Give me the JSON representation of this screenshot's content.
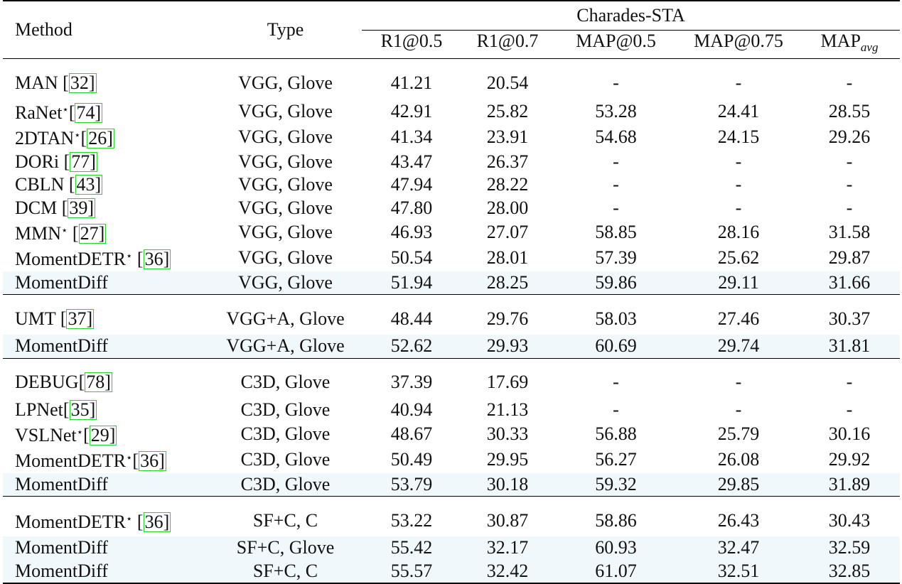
{
  "table": {
    "col_method": "Method",
    "col_type": "Type",
    "dataset": "Charades-STA",
    "metrics": [
      "R1@0.5",
      "R1@0.7",
      "MAP@0.5",
      "MAP@0.75"
    ],
    "metric_last_base": "MAP",
    "metric_last_sub": "avg",
    "groups": [
      {
        "rows": [
          {
            "method": "MAN",
            "star": false,
            "cite": "32",
            "cite_gap": " [",
            "type": "VGG, Glove",
            "values": [
              "41.21",
              "20.54",
              "-",
              "-",
              "-"
            ],
            "bold": false,
            "highlight": false
          },
          {
            "method": "RaNet",
            "star": true,
            "cite": "74",
            "cite_gap": "[",
            "type": "VGG, Glove",
            "values": [
              "42.91",
              "25.82",
              "53.28",
              "24.41",
              "28.55"
            ],
            "bold": false,
            "highlight": false
          },
          {
            "method": "2DTAN",
            "star": true,
            "cite": "26",
            "cite_gap": "[",
            "type": "VGG, Glove",
            "values": [
              "41.34",
              "23.91",
              "54.68",
              "24.15",
              "29.26"
            ],
            "bold": false,
            "highlight": false
          },
          {
            "method": "DORi",
            "star": false,
            "cite": "77",
            "cite_gap": " [",
            "type": "VGG, Glove",
            "values": [
              "43.47",
              "26.37",
              "-",
              "-",
              "-"
            ],
            "bold": false,
            "highlight": false
          },
          {
            "method": "CBLN",
            "star": false,
            "cite": "43",
            "cite_gap": " [",
            "type": "VGG, Glove",
            "values": [
              "47.94",
              "28.22",
              "-",
              "-",
              "-"
            ],
            "bold": false,
            "highlight": false
          },
          {
            "method": "DCM",
            "star": false,
            "cite": "39",
            "cite_gap": " [",
            "type": "VGG, Glove",
            "values": [
              "47.80",
              "28.00",
              "-",
              "-",
              "-"
            ],
            "bold": false,
            "highlight": false
          },
          {
            "method": "MMN",
            "star": true,
            "cite": "27",
            "cite_gap": " [",
            "type": "VGG, Glove",
            "values": [
              "46.93",
              "27.07",
              "58.85",
              "28.16",
              "31.58"
            ],
            "bold": false,
            "highlight": false
          },
          {
            "method": "MomentDETR",
            "star": true,
            "cite": "36",
            "cite_gap": " [",
            "type": "VGG, Glove",
            "values": [
              "50.54",
              "28.01",
              "57.39",
              "25.62",
              "29.87"
            ],
            "bold": false,
            "highlight": false
          },
          {
            "method": "MomentDiff",
            "star": false,
            "cite": "",
            "cite_gap": "",
            "type": "VGG, Glove",
            "values": [
              "51.94",
              "28.25",
              "59.86",
              "29.11",
              "31.66"
            ],
            "bold": true,
            "highlight": true
          }
        ]
      },
      {
        "rows": [
          {
            "method": "UMT",
            "star": false,
            "cite": "37",
            "cite_gap": " [",
            "type": "VGG+A, Glove",
            "values": [
              "48.44",
              "29.76",
              "58.03",
              "27.46",
              "30.37"
            ],
            "bold": false,
            "highlight": false
          },
          {
            "method": "MomentDiff",
            "star": false,
            "cite": "",
            "cite_gap": "",
            "type": "VGG+A, Glove",
            "values": [
              "52.62",
              "29.93",
              "60.69",
              "29.74",
              "31.81"
            ],
            "bold": true,
            "highlight": true
          }
        ]
      },
      {
        "rows": [
          {
            "method": "DEBUG",
            "star": false,
            "cite": "78",
            "cite_gap": "[",
            "type": "C3D, Glove",
            "values": [
              "37.39",
              "17.69",
              "-",
              "-",
              "-"
            ],
            "bold": false,
            "highlight": false
          },
          {
            "method": "LPNet",
            "star": false,
            "cite": "35",
            "cite_gap": "[",
            "type": "C3D, Glove",
            "values": [
              "40.94",
              "21.13",
              "-",
              "-",
              "-"
            ],
            "bold": false,
            "highlight": false
          },
          {
            "method": "VSLNet",
            "star": true,
            "cite": "29",
            "cite_gap": "[",
            "type": "C3D, Glove",
            "values": [
              "48.67",
              "30.33",
              "56.88",
              "25.79",
              "30.16"
            ],
            "bold": false,
            "highlight": false
          },
          {
            "method": "MomentDETR",
            "star": true,
            "cite": "36",
            "cite_gap": "[",
            "type": "C3D, Glove",
            "values": [
              "50.49",
              "29.95",
              "56.27",
              "26.08",
              "29.92"
            ],
            "bold": false,
            "highlight": false
          },
          {
            "method": "MomentDiff",
            "star": false,
            "cite": "",
            "cite_gap": "",
            "type": "C3D, Glove",
            "values": [
              "53.79",
              "30.18",
              "59.32",
              "29.85",
              "31.89"
            ],
            "bold": true,
            "highlight": true
          }
        ]
      },
      {
        "rows": [
          {
            "method": "MomentDETR",
            "star": true,
            "cite": "36",
            "cite_gap": " [",
            "type": "SF+C, C",
            "values": [
              "53.22",
              "30.87",
              "58.86",
              "26.43",
              "30.43"
            ],
            "bold": false,
            "highlight": false
          },
          {
            "method": "MomentDiff",
            "star": false,
            "cite": "",
            "cite_gap": "",
            "type": "SF+C, Glove",
            "values": [
              "55.42",
              "32.17",
              "60.93",
              "32.47",
              "32.59"
            ],
            "bold": false,
            "highlight": true
          },
          {
            "method": "MomentDiff",
            "star": false,
            "cite": "",
            "cite_gap": "",
            "type": "SF+C, C",
            "values": [
              "55.57",
              "32.42",
              "61.07",
              "32.51",
              "32.85"
            ],
            "bold": true,
            "highlight": true
          }
        ]
      }
    ],
    "colors": {
      "highlight_bg": "#f1f8fc",
      "cite_border": "#22d62a"
    }
  }
}
